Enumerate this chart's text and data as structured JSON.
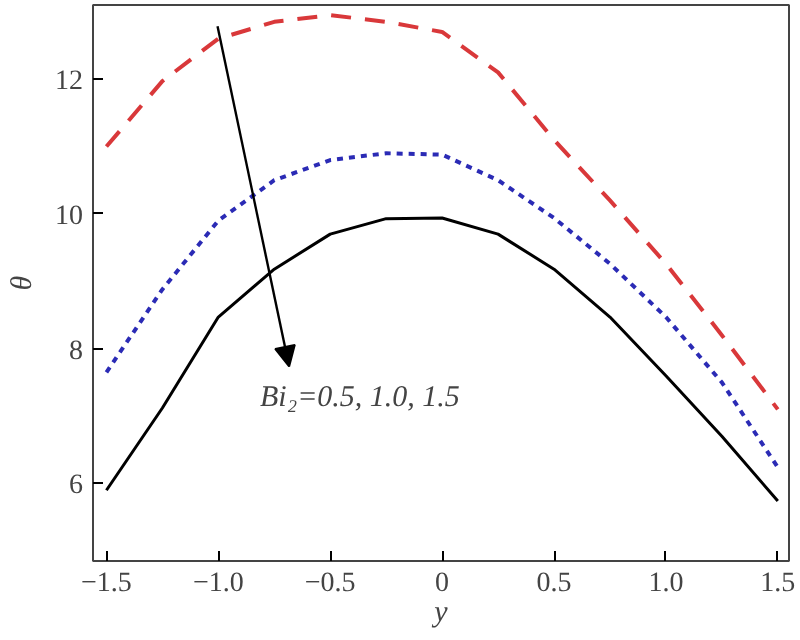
{
  "chart_data": {
    "type": "line",
    "xlabel": "y",
    "ylabel": "θ",
    "x": [
      -1.5,
      -1.25,
      -1.0,
      -0.75,
      -0.5,
      -0.25,
      0,
      0.25,
      0.5,
      0.75,
      1.0,
      1.25,
      1.5
    ],
    "series": [
      {
        "color": "#d9383a",
        "line_style": "dashed",
        "values": [
          11.0,
          11.97,
          12.6,
          12.85,
          12.95,
          12.85,
          12.7,
          12.1,
          11.1,
          10.2,
          9.26,
          8.2,
          7.1
        ]
      },
      {
        "color": "#2b2bb5",
        "line_style": "dotted",
        "values": [
          7.65,
          8.88,
          9.9,
          10.5,
          10.8,
          10.9,
          10.88,
          10.5,
          9.94,
          9.26,
          8.47,
          7.5,
          6.24
        ]
      },
      {
        "color": "#000000",
        "line_style": "solid",
        "values": [
          5.9,
          7.12,
          8.47,
          9.18,
          9.7,
          9.93,
          9.94,
          9.7,
          9.18,
          8.47,
          7.6,
          6.7,
          5.74
        ]
      }
    ],
    "xlim": [
      -1.56,
      1.55
    ],
    "ylim": [
      4.85,
      13.1
    ],
    "xticks": [
      {
        "value": -1.5,
        "label": "−1.5"
      },
      {
        "value": -1.0,
        "label": "−1.0"
      },
      {
        "value": -0.5,
        "label": "−0.5"
      },
      0,
      0.5,
      {
        "value": 1.0,
        "label": "1.0"
      },
      1.5
    ],
    "yticks": [
      6,
      8,
      10,
      12
    ],
    "grid": false,
    "annotations": [
      "Bi₂=0.5, 1.0, 1.5"
    ]
  }
}
